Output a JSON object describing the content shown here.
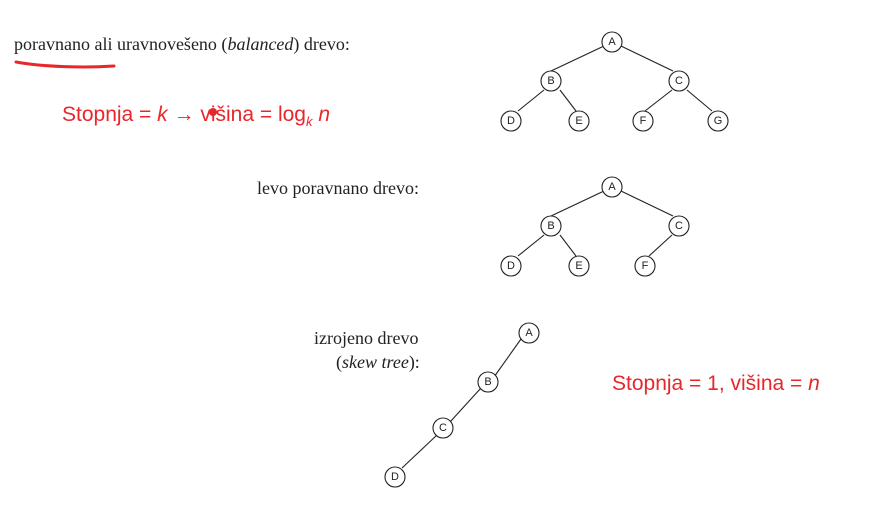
{
  "colors": {
    "accent": "#e8262b",
    "ink": "#222222"
  },
  "balanced": {
    "caption_main": "poravnano ali uravnovešeno (",
    "caption_italic": "balanced",
    "caption_end": ") drevo:",
    "formula_prefix": "Stopnja = ",
    "formula_k": "k",
    "formula_arrow": "→",
    "formula_mid": " višina = log",
    "formula_sub": "k",
    "formula_n": "n",
    "nodes": [
      "A",
      "B",
      "C",
      "D",
      "E",
      "F",
      "G"
    ]
  },
  "left_balanced": {
    "caption": "levo poravnano drevo:",
    "nodes": [
      "A",
      "B",
      "C",
      "D",
      "E",
      "F"
    ]
  },
  "skew": {
    "caption_line1": "izrojeno drevo",
    "caption_open": "(",
    "caption_italic": "skew tree",
    "caption_close": "):",
    "formula_text": "Stopnja = 1, višina = ",
    "formula_n": "n",
    "nodes": [
      "A",
      "B",
      "C",
      "D"
    ]
  }
}
